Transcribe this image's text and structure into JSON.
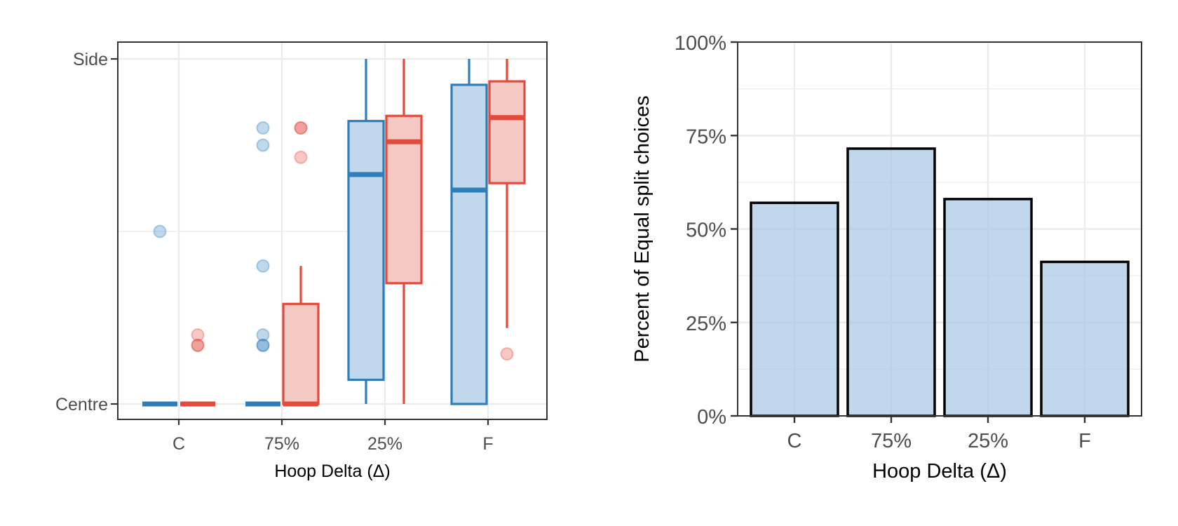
{
  "colors": {
    "blue": "#2e7ebc",
    "blue_fill": "#c1d8ec",
    "red": "#e34a3c",
    "red_fill": "#f6c8c3",
    "bar_fill": "#c1d8ec",
    "bar_stroke": "#000000",
    "grid": "#ebebeb",
    "panel_border": "#333333",
    "tick_text": "#4d4d4d"
  },
  "chart_data": [
    {
      "type": "box",
      "title": "",
      "xlabel": "Hoop Delta (Δ)",
      "ylabel": "",
      "categories": [
        "C",
        "75%",
        "25%",
        "F"
      ],
      "y_tick_labels": [
        "Centre",
        "Side"
      ],
      "ylim": [
        0,
        1
      ],
      "grid": true,
      "series": [
        {
          "color": "blue",
          "boxes": [
            {
              "min": 0,
              "q1": 0,
              "median": 0,
              "q3": 0,
              "max": 0
            },
            {
              "min": 0,
              "q1": 0,
              "median": 0,
              "q3": 0,
              "max": 0
            },
            {
              "min": 0,
              "q1": 0.07,
              "median": 0.665,
              "q3": 0.82,
              "max": 1.0
            },
            {
              "min": 0,
              "q1": 0,
              "median": 0.62,
              "q3": 0.925,
              "max": 1.0
            }
          ],
          "outliers": [
            {
              "category": "C",
              "values": [
                0.5
              ]
            },
            {
              "category": "75%",
              "values": [
                0.8,
                0.75,
                0.4,
                0.2,
                0.17,
                0.17
              ]
            }
          ]
        },
        {
          "color": "red",
          "boxes": [
            {
              "min": 0,
              "q1": 0,
              "median": 0,
              "q3": 0,
              "max": 0
            },
            {
              "min": 0,
              "q1": 0,
              "median": 0,
              "q3": 0.29,
              "max": 0.4
            },
            {
              "min": 0,
              "q1": 0.35,
              "median": 0.76,
              "q3": 0.835,
              "max": 1.0
            },
            {
              "min": 0.22,
              "q1": 0.64,
              "median": 0.83,
              "q3": 0.935,
              "max": 1.0
            }
          ],
          "outliers": [
            {
              "category": "C",
              "values": [
                0.2,
                0.17,
                0.17
              ]
            },
            {
              "category": "75%",
              "values": [
                0.8,
                0.8,
                0.715
              ]
            },
            {
              "category": "F",
              "values": [
                0.145
              ]
            }
          ]
        }
      ]
    },
    {
      "type": "bar",
      "title": "",
      "xlabel": "Hoop Delta (Δ)",
      "ylabel": "Percent of Equal split choices",
      "categories": [
        "C",
        "75%",
        "25%",
        "F"
      ],
      "values": [
        57,
        71.5,
        58,
        41.2
      ],
      "ylim": [
        0,
        100
      ],
      "y_ticks": [
        0,
        25,
        50,
        75,
        100
      ],
      "y_tick_labels": [
        "0%",
        "25%",
        "50%",
        "75%",
        "100%"
      ],
      "grid": true
    }
  ]
}
